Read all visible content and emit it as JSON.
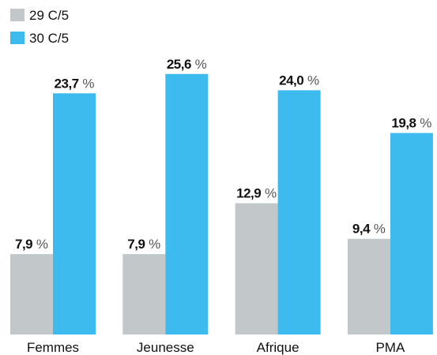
{
  "chart_data": {
    "type": "bar",
    "categories": [
      "Femmes",
      "Jeunesse",
      "Afrique",
      "PMA"
    ],
    "series": [
      {
        "name": "29 C/5",
        "color": "#c2c7c9",
        "values": [
          7.9,
          7.9,
          12.9,
          9.4
        ],
        "value_labels": [
          "7,9 %",
          "7,9 %",
          "12,9 %",
          "9,4 %"
        ]
      },
      {
        "name": "30 C/5",
        "color": "#3dbbee",
        "values": [
          23.7,
          25.6,
          24.0,
          19.8
        ],
        "value_labels": [
          "23,7 %",
          "25,6 %",
          "24,0 %",
          "19,8 %"
        ]
      }
    ],
    "legend": "top-left"
  }
}
